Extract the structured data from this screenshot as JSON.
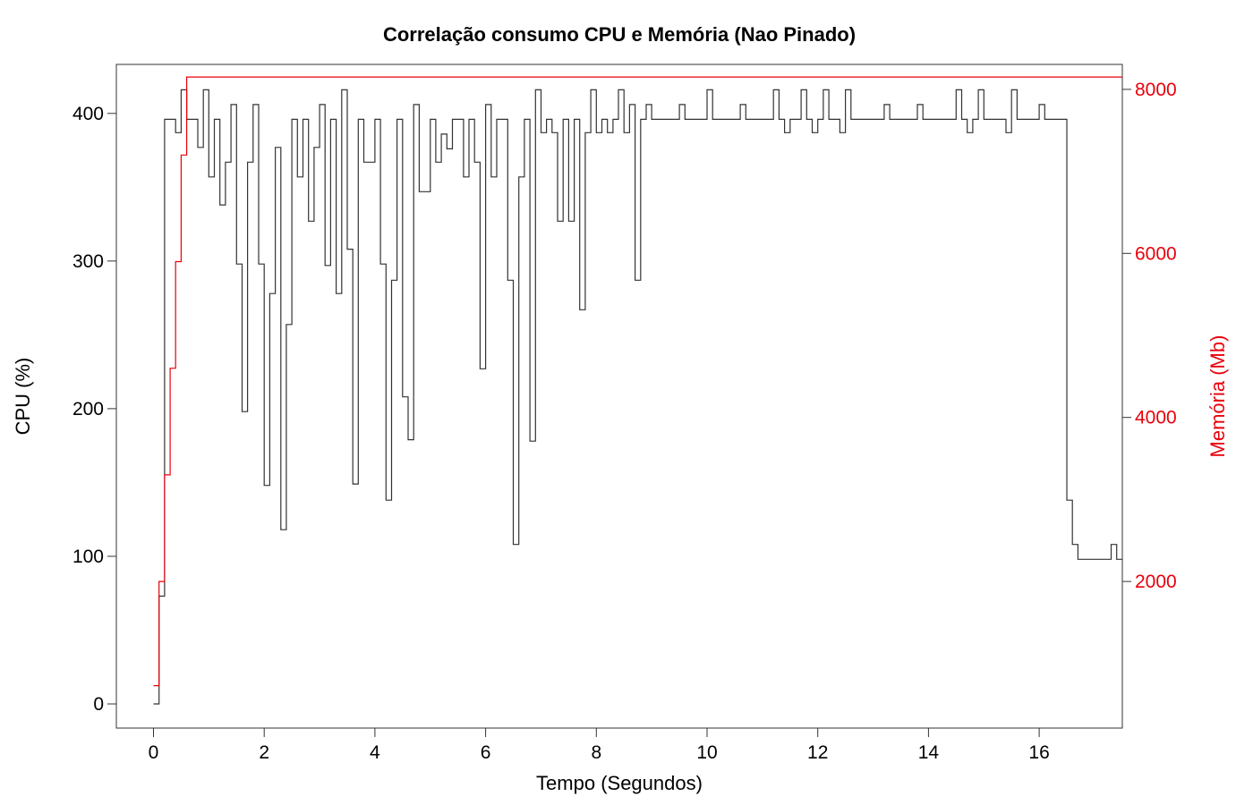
{
  "chart_data": {
    "type": "line",
    "title": "Correlação consumo CPU e Memória (Nao Pinado)",
    "xlabel": "Tempo (Segundos)",
    "ylabel": "CPU (%)",
    "y2label": "Memória (Mb)",
    "xlim": [
      0,
      16.9
    ],
    "ylim": [
      0,
      420
    ],
    "y2lim": [
      600,
      8200
    ],
    "x_ticks": [
      0,
      2,
      4,
      6,
      8,
      10,
      12,
      14,
      16
    ],
    "y_ticks": [
      0,
      100,
      200,
      300,
      400
    ],
    "y2_ticks": [
      2000,
      4000,
      6000,
      8000
    ],
    "x_tick_labels": [
      "0",
      "2",
      "4",
      "6",
      "8",
      "10",
      "12",
      "14",
      "16"
    ],
    "y_tick_labels": [
      "0",
      "100",
      "200",
      "300",
      "400"
    ],
    "y2_tick_labels": [
      "2000",
      "4000",
      "6000",
      "8000"
    ],
    "step_width": 0.1,
    "grid": false,
    "series": [
      {
        "name": "CPU",
        "axis": "left",
        "color": "#333333",
        "values": [
          0,
          73,
          396,
          396,
          387,
          416,
          396,
          396,
          377,
          416,
          357,
          396,
          338,
          367,
          406,
          298,
          198,
          367,
          406,
          298,
          148,
          278,
          377,
          118,
          257,
          396,
          357,
          396,
          327,
          377,
          406,
          297,
          396,
          278,
          416,
          308,
          149,
          396,
          367,
          367,
          396,
          298,
          138,
          287,
          396,
          208,
          179,
          406,
          347,
          347,
          396,
          367,
          386,
          376,
          396,
          396,
          357,
          396,
          367,
          227,
          406,
          357,
          396,
          396,
          287,
          108,
          357,
          396,
          178,
          416,
          387,
          396,
          387,
          327,
          396,
          327,
          396,
          267,
          387,
          416,
          387,
          396,
          387,
          396,
          416,
          387,
          406,
          287,
          396,
          406,
          396,
          396,
          396,
          396,
          396,
          406,
          396,
          396,
          396,
          396,
          416,
          396,
          396,
          396,
          396,
          396,
          406,
          396,
          396,
          396,
          396,
          396,
          416,
          396,
          387,
          396,
          396,
          416,
          396,
          387,
          396,
          416,
          396,
          396,
          387,
          416,
          396,
          396,
          396,
          396,
          396,
          396,
          406,
          396,
          396,
          396,
          396,
          396,
          406,
          396,
          396,
          396,
          396,
          396,
          396,
          416,
          396,
          387,
          396,
          416,
          396,
          396,
          396,
          396,
          387,
          416,
          396,
          396,
          396,
          396,
          406,
          396,
          396,
          396,
          396,
          138,
          108,
          98,
          98,
          98,
          98,
          98,
          98,
          108,
          98
        ]
      },
      {
        "name": "Memória",
        "axis": "right",
        "color": "#e8000b",
        "values": [
          730,
          2000,
          3300,
          4600,
          5900,
          7200,
          8150,
          8150
        ]
      }
    ]
  }
}
